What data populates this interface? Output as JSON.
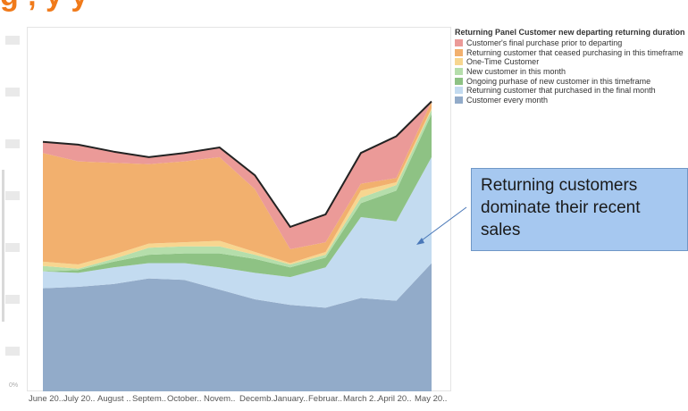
{
  "title_fragment": "g                              ; y               y",
  "chart_data": {
    "type": "area",
    "stacked": true,
    "categories": [
      "June 20..",
      "July 20..",
      "August ..",
      "Septem..",
      "October..",
      "Novem..",
      "Decemb..",
      "January..",
      "Februar..",
      "March 2..",
      "April 20..",
      "May 20.."
    ],
    "y_tick_label": "0%",
    "legend_title": "Returning Panel Customer new departing returning duration",
    "legend_position": "right",
    "series": [
      {
        "name": "Customer every month",
        "color": "#92abc9",
        "values": [
          74,
          75,
          77,
          81,
          80,
          73,
          66,
          62,
          60,
          67,
          65,
          92
        ]
      },
      {
        "name": "Returning customer that purchased in the final month",
        "color": "#c3dbf0",
        "values": [
          12,
          10,
          12,
          11,
          12,
          16,
          19,
          20,
          29,
          58,
          57,
          76
        ]
      },
      {
        "name": "Ongoing purhase of new customer in this timeframe",
        "color": "#8ec284",
        "values": [
          0,
          2,
          4,
          6,
          7,
          10,
          10,
          7,
          7,
          10,
          22,
          31
        ]
      },
      {
        "name": "New customer in this month",
        "color": "#b5deab",
        "values": [
          4,
          1,
          2,
          5,
          5,
          5,
          3,
          2,
          2,
          4,
          4,
          3
        ]
      },
      {
        "name": "One-Time Customer",
        "color": "#f7d690",
        "values": [
          3,
          3,
          3,
          3,
          3,
          4,
          2,
          1,
          2,
          5,
          2,
          1
        ]
      },
      {
        "name": "Returning customer that ceased purchasing in this timeframe",
        "color": "#f2b06e",
        "values": [
          78,
          74,
          66,
          57,
          58,
          60,
          45,
          10,
          7,
          5,
          3,
          5
        ]
      },
      {
        "name": "Customer's final purchase prior to departing",
        "color": "#eb9a98",
        "values": [
          8,
          12,
          8,
          5,
          6,
          7,
          10,
          16,
          20,
          22,
          30,
          0
        ]
      }
    ],
    "total_line_color": "#222222",
    "annotation": "Returning customers dominate their recent sales"
  }
}
